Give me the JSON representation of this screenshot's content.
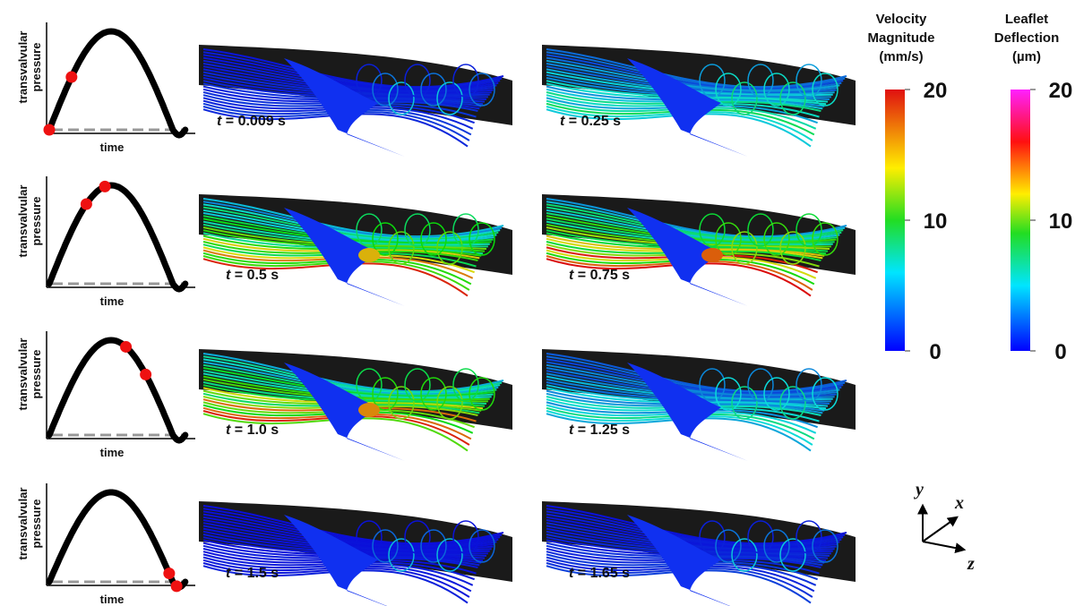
{
  "rows": [
    {
      "pressure_plot": {
        "y_label": [
          "transvalvular",
          "pressure"
        ],
        "x_label": "time"
      },
      "panels": [
        {
          "symbol": "t",
          "time": "= 0.009 s"
        },
        {
          "symbol": "t",
          "time": "= 0.25 s"
        }
      ]
    },
    {
      "pressure_plot": {
        "y_label": [
          "transvalvular",
          "pressure"
        ],
        "x_label": "time"
      },
      "panels": [
        {
          "symbol": "t",
          "time": "= 0.5 s"
        },
        {
          "symbol": "t",
          "time": "= 0.75 s"
        }
      ]
    },
    {
      "pressure_plot": {
        "y_label": [
          "transvalvular",
          "pressure"
        ],
        "x_label": "time"
      },
      "panels": [
        {
          "symbol": "t",
          "time": "= 1.0 s"
        },
        {
          "symbol": "t",
          "time": "= 1.25 s"
        }
      ]
    },
    {
      "pressure_plot": {
        "y_label": [
          "transvalvular",
          "pressure"
        ],
        "x_label": "time"
      },
      "panels": [
        {
          "symbol": "t",
          "time": "= 1.5 s"
        },
        {
          "symbol": "t",
          "time": "= 1.65 s"
        }
      ]
    }
  ],
  "legends": [
    {
      "title": [
        "Velocity",
        "Magnitude",
        "(mm/s)"
      ],
      "ticks": [
        20,
        10,
        0
      ]
    },
    {
      "title": [
        "Leaflet",
        "Deflection",
        "(µm)"
      ],
      "ticks": [
        20,
        10,
        0
      ]
    }
  ],
  "axes_triad": {
    "y": "y",
    "x": "x",
    "z": "z"
  }
}
